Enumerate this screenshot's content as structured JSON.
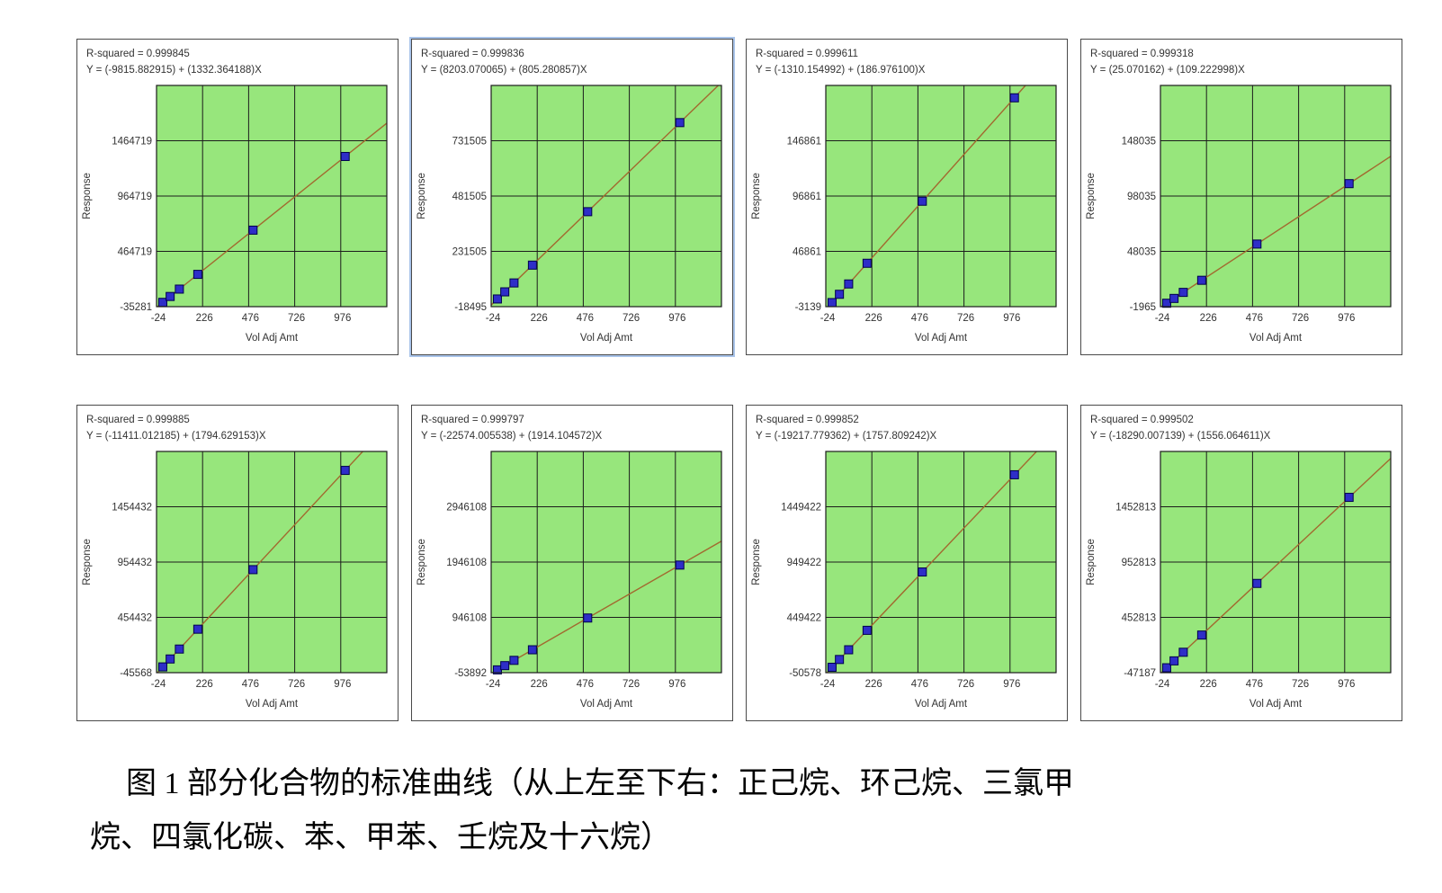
{
  "colors": {
    "plot_bg": "#97e67c",
    "grid": "#1c1c1c",
    "fit_line": "#a2692f",
    "point_fill": "#2e2ec8",
    "point_stroke": "#00004d",
    "panel_border": "#4a4a4a",
    "highlight_border": "#a9c4ea"
  },
  "caption": {
    "line1": "图 1  部分化合物的标准曲线（从上左至下右：正己烷、环己烷、三氯甲",
    "line2": "烷、四氯化碳、苯、甲苯、壬烷及十六烷）"
  },
  "chart_data": [
    {
      "type": "scatter",
      "r_squared_label": "R-squared = 0.999845",
      "equation_label": "Y = (-9815.882915) + (1332.364188)X",
      "intercept": -9815.882915,
      "slope": 1332.364188,
      "xlabel": "Vol Adj Amt",
      "ylabel": "Response",
      "x_ticks": [
        -24,
        226,
        476,
        726,
        976
      ],
      "x_min": -24,
      "x_max": 1226,
      "y_ticks": [
        -35281,
        464719,
        964719,
        1464719
      ],
      "y_min": -35281,
      "y_max": 1964719,
      "points_x": [
        10,
        50,
        100,
        200,
        500,
        1000
      ],
      "highlighted": false
    },
    {
      "type": "scatter",
      "r_squared_label": "R-squared = 0.999836",
      "equation_label": "Y = (8203.070065) + (805.280857)X",
      "intercept": 8203.070065,
      "slope": 805.280857,
      "xlabel": "Vol Adj Amt",
      "ylabel": "Response",
      "x_ticks": [
        -24,
        226,
        476,
        726,
        976
      ],
      "x_min": -24,
      "x_max": 1226,
      "y_ticks": [
        -18495,
        231505,
        481505,
        731505
      ],
      "y_min": -18495,
      "y_max": 981505,
      "points_x": [
        10,
        50,
        100,
        200,
        500,
        1000
      ],
      "highlighted": true
    },
    {
      "type": "scatter",
      "r_squared_label": "R-squared = 0.999611",
      "equation_label": "Y = (-1310.154992) + (186.976100)X",
      "intercept": -1310.154992,
      "slope": 186.9761,
      "xlabel": "Vol Adj Amt",
      "ylabel": "Response",
      "x_ticks": [
        -24,
        226,
        476,
        726,
        976
      ],
      "x_min": -24,
      "x_max": 1226,
      "y_ticks": [
        -3139,
        46861,
        96861,
        146861
      ],
      "y_min": -3139,
      "y_max": 196861,
      "points_x": [
        10,
        50,
        100,
        200,
        500,
        1000
      ],
      "highlighted": false
    },
    {
      "type": "scatter",
      "r_squared_label": "R-squared = 0.999318",
      "equation_label": "Y = (25.070162) + (109.222998)X",
      "intercept": 25.070162,
      "slope": 109.222998,
      "xlabel": "Vol Adj Amt",
      "ylabel": "Response",
      "x_ticks": [
        -24,
        226,
        476,
        726,
        976
      ],
      "x_min": -24,
      "x_max": 1226,
      "y_ticks": [
        -1965,
        48035,
        98035,
        148035
      ],
      "y_min": -1965,
      "y_max": 198035,
      "points_x": [
        10,
        50,
        100,
        200,
        500,
        1000
      ],
      "highlighted": false
    },
    {
      "type": "scatter",
      "r_squared_label": "R-squared = 0.999885",
      "equation_label": "Y = (-11411.012185) + (1794.629153)X",
      "intercept": -11411.012185,
      "slope": 1794.629153,
      "xlabel": "Vol Adj Amt",
      "ylabel": "Response",
      "x_ticks": [
        -24,
        226,
        476,
        726,
        976
      ],
      "x_min": -24,
      "x_max": 1226,
      "y_ticks": [
        -45568,
        454432,
        954432,
        1454432
      ],
      "y_min": -45568,
      "y_max": 1954432,
      "points_x": [
        10,
        50,
        100,
        200,
        500,
        1000
      ],
      "highlighted": false
    },
    {
      "type": "scatter",
      "r_squared_label": "R-squared = 0.999797",
      "equation_label": "Y = (-22574.005538) + (1914.104572)X",
      "intercept": -22574.005538,
      "slope": 1914.104572,
      "xlabel": "Vol Adj Amt",
      "ylabel": "Response",
      "x_ticks": [
        -24,
        226,
        476,
        726,
        976
      ],
      "x_min": -24,
      "x_max": 1226,
      "y_ticks": [
        -53892,
        946108,
        1946108,
        2946108
      ],
      "y_min": -53892,
      "y_max": 3946108,
      "points_x": [
        10,
        50,
        100,
        200,
        500,
        1000
      ],
      "highlighted": false
    },
    {
      "type": "scatter",
      "r_squared_label": "R-squared = 0.999852",
      "equation_label": "Y = (-19217.779362) + (1757.809242)X",
      "intercept": -19217.779362,
      "slope": 1757.809242,
      "xlabel": "Vol Adj Amt",
      "ylabel": "Response",
      "x_ticks": [
        -24,
        226,
        476,
        726,
        976
      ],
      "x_min": -24,
      "x_max": 1226,
      "y_ticks": [
        -50578,
        449422,
        949422,
        1449422
      ],
      "y_min": -50578,
      "y_max": 1949422,
      "points_x": [
        10,
        50,
        100,
        200,
        500,
        1000
      ],
      "highlighted": false
    },
    {
      "type": "scatter",
      "r_squared_label": "R-squared = 0.999502",
      "equation_label": "Y = (-18290.007139) + (1556.064611)X",
      "intercept": -18290.007139,
      "slope": 1556.064611,
      "xlabel": "Vol Adj Amt",
      "ylabel": "Response",
      "x_ticks": [
        -24,
        226,
        476,
        726,
        976
      ],
      "x_min": -24,
      "x_max": 1226,
      "y_ticks": [
        -47187,
        452813,
        952813,
        1452813
      ],
      "y_min": -47187,
      "y_max": 1952813,
      "points_x": [
        10,
        50,
        100,
        200,
        500,
        1000
      ],
      "highlighted": false
    }
  ]
}
